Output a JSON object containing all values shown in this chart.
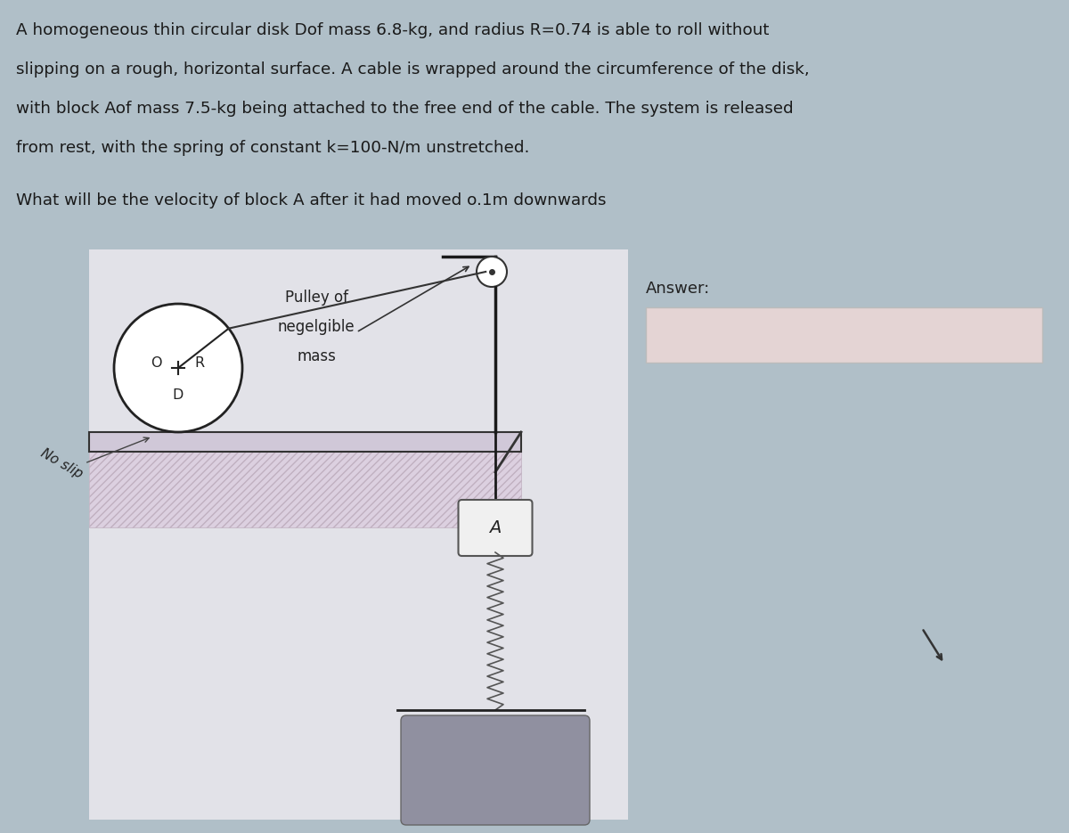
{
  "bg_color": "#b0bfc8",
  "diagram_bg": "#e8e8ec",
  "text_color": "#1a1a1a",
  "title_lines": [
    "A homogeneous thin circular disk Dof mass 6.8-kg, and radius R=0.74 is able to roll without",
    "slipping on a rough, horizontal surface. A cable is wrapped around the circumference of the disk,",
    "with block Aof mass 7.5-kg being attached to the free end of the cable. The system is released",
    "from rest, with the spring of constant k=100-N/m unstretched."
  ],
  "question": "What will be the velocity of block A after it had moved o.1m downwards",
  "answer_label": "Answer:",
  "pulley_label_lines": [
    "Pulley of",
    "negelgible",
    "mass"
  ],
  "no_slip_label": "No slip",
  "disk_label_O": "O",
  "disk_label_R": "R",
  "disk_label_D": "D",
  "block_label": "A"
}
